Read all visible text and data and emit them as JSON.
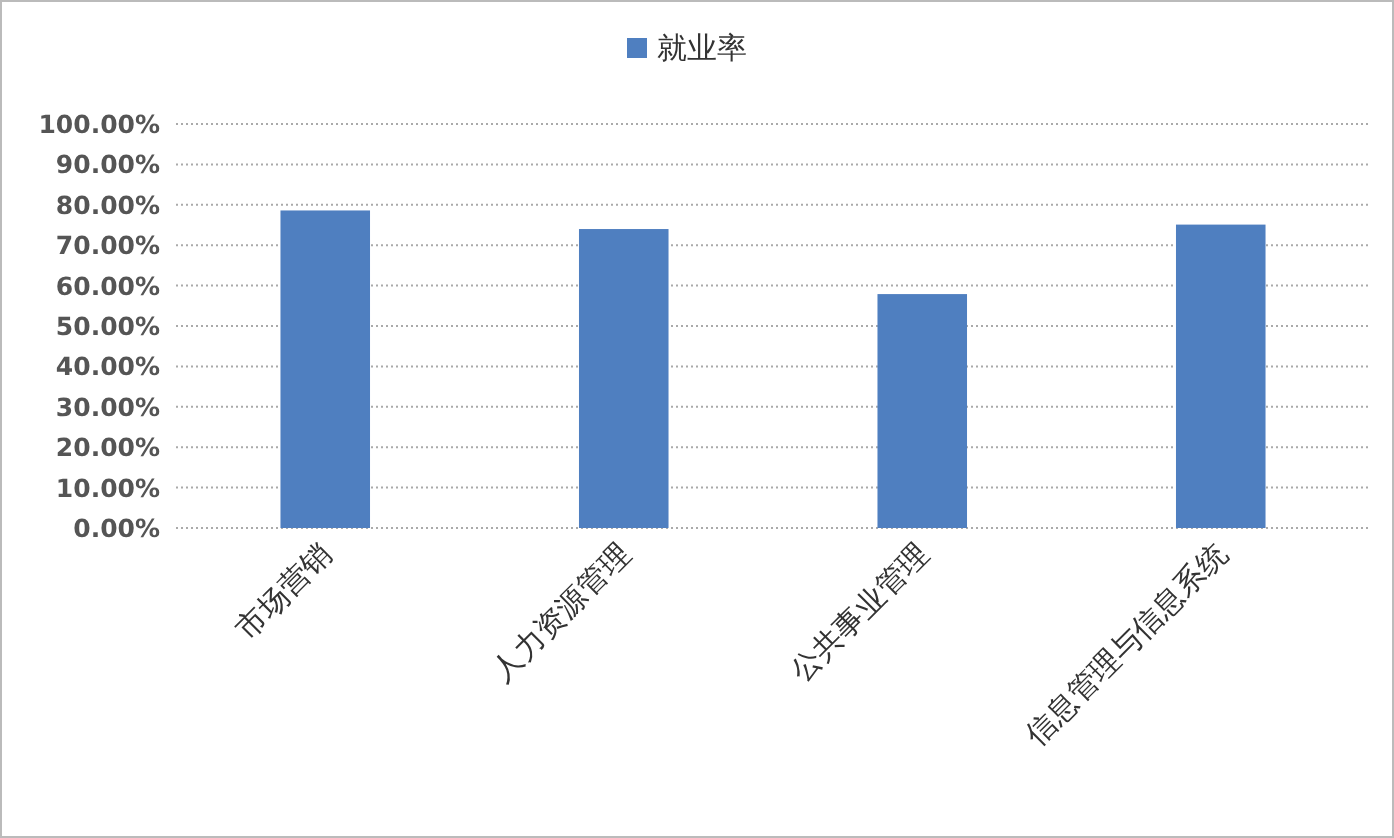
{
  "chart_data": {
    "type": "bar",
    "categories": [
      "市场营销",
      "人力资源管理",
      "公共事业管理",
      "信息管理与信息系统"
    ],
    "series": [
      {
        "name": "就业率",
        "color": "#4f7fc0",
        "values": [
          78.6,
          74.0,
          57.9,
          75.1
        ]
      }
    ],
    "ylim": [
      0,
      100
    ],
    "yticks": [
      {
        "value": 0,
        "label": "0.00%"
      },
      {
        "value": 10,
        "label": "10.00%"
      },
      {
        "value": 20,
        "label": "20.00%"
      },
      {
        "value": 30,
        "label": "30.00%"
      },
      {
        "value": 40,
        "label": "40.00%"
      },
      {
        "value": 50,
        "label": "50.00%"
      },
      {
        "value": 60,
        "label": "60.00%"
      },
      {
        "value": 70,
        "label": "70.00%"
      },
      {
        "value": 80,
        "label": "80.00%"
      },
      {
        "value": 90,
        "label": "90.00%"
      },
      {
        "value": 100,
        "label": "100.00%"
      }
    ],
    "grid": "y",
    "legend": "top"
  }
}
